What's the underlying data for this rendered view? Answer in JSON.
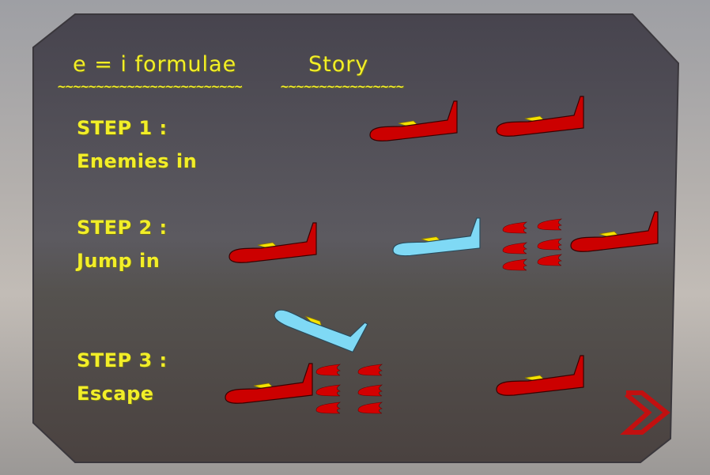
{
  "header": {
    "tabs": [
      {
        "label": "e = i formulae",
        "underline": "~~~~~~~~~~~~~~~~~~~~~~~~"
      },
      {
        "label": "Story",
        "underline": "~~~~~~~~~~~~~~~~"
      }
    ]
  },
  "steps": [
    {
      "title": "STEP 1 :",
      "caption": "Enemies in"
    },
    {
      "title": "STEP 2 :",
      "caption": "Jump in"
    },
    {
      "title": "STEP 3 :",
      "caption": "Escape"
    }
  ],
  "icons": {
    "enemy": "red-jet-icon",
    "player": "blue-jet-icon",
    "bullet": "red-bullet-icon",
    "next": "next-arrow-icon"
  },
  "colors": {
    "panel": "#4a4750",
    "text": "#f2ee28",
    "enemy": "#cc0000",
    "player": "#7fd9f5",
    "cockpit": "#f5e200",
    "next": "#c21010"
  }
}
